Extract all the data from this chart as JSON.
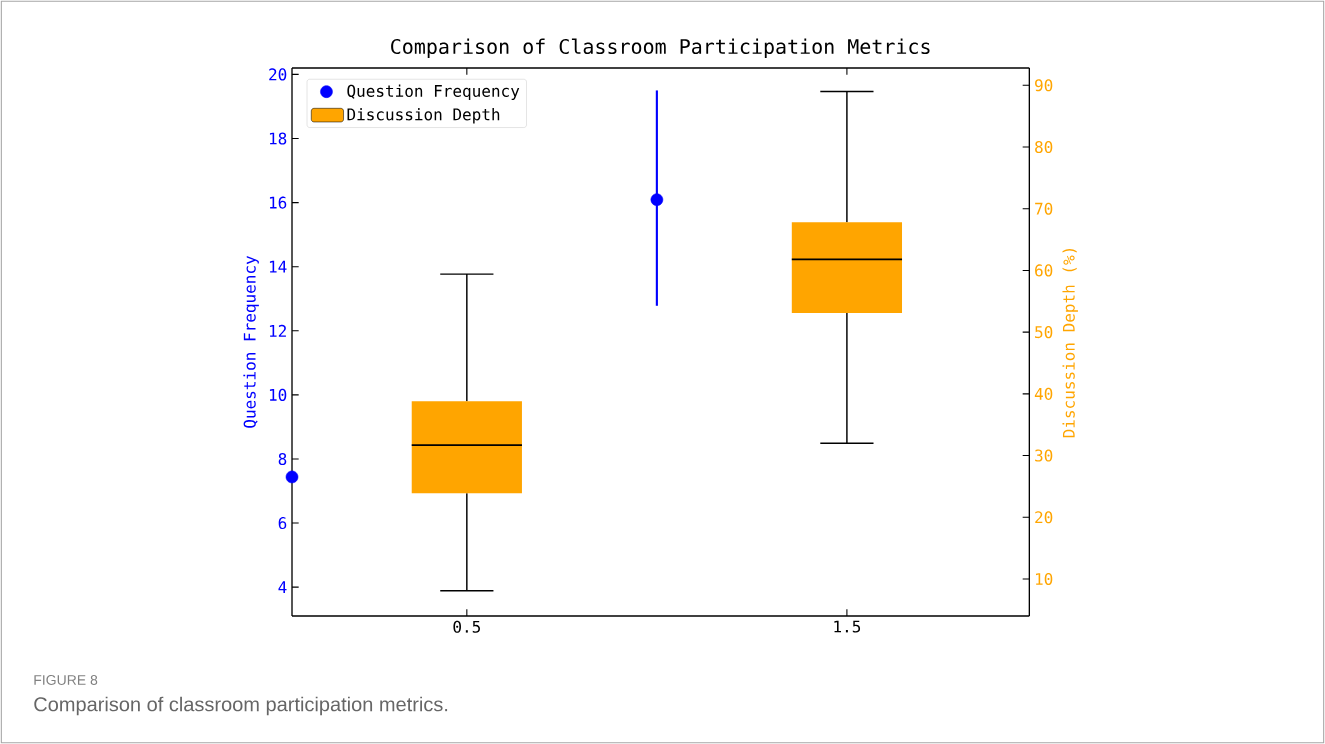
{
  "chart_data": {
    "type": "box",
    "title": "Comparison of Classroom Participation Metrics",
    "ylabel": "Question Frequency",
    "y2label": "Discussion Depth (%)",
    "annotations": [
      "FIGURE 8",
      "Comparison of classroom participation metrics."
    ],
    "xlim": [
      0.04,
      1.98
    ],
    "xticks": [
      0.5,
      1.5
    ],
    "ylim": [
      3.1,
      20.2
    ],
    "yticks": [
      4,
      6,
      8,
      10,
      12,
      14,
      16,
      18,
      20
    ],
    "y2lim": [
      4.0,
      92.8
    ],
    "y2ticks": [
      10,
      20,
      30,
      40,
      50,
      60,
      70,
      80,
      90
    ],
    "legend": "top left",
    "marker": "circle",
    "series": [
      {
        "name": "Question Frequency",
        "type": "scatter",
        "color": "#0000ff",
        "x": [
          0.04,
          1
        ],
        "values": [
          7.44,
          16.09
        ],
        "errors": [
          null,
          [
            12.78,
            19.5
          ]
        ]
      },
      {
        "name": "Discussion Depth",
        "type": "box",
        "axis": "y2",
        "color": "#ffa500",
        "x": [
          0.5,
          1.5
        ],
        "boxes": [
          {
            "low": 8.1,
            "q1": 23.9,
            "median": 31.7,
            "q3": 38.8,
            "high": 59.4
          },
          {
            "low": 32.0,
            "q1": 53.1,
            "median": 61.8,
            "q3": 67.8,
            "high": 89.0
          }
        ]
      }
    ]
  }
}
